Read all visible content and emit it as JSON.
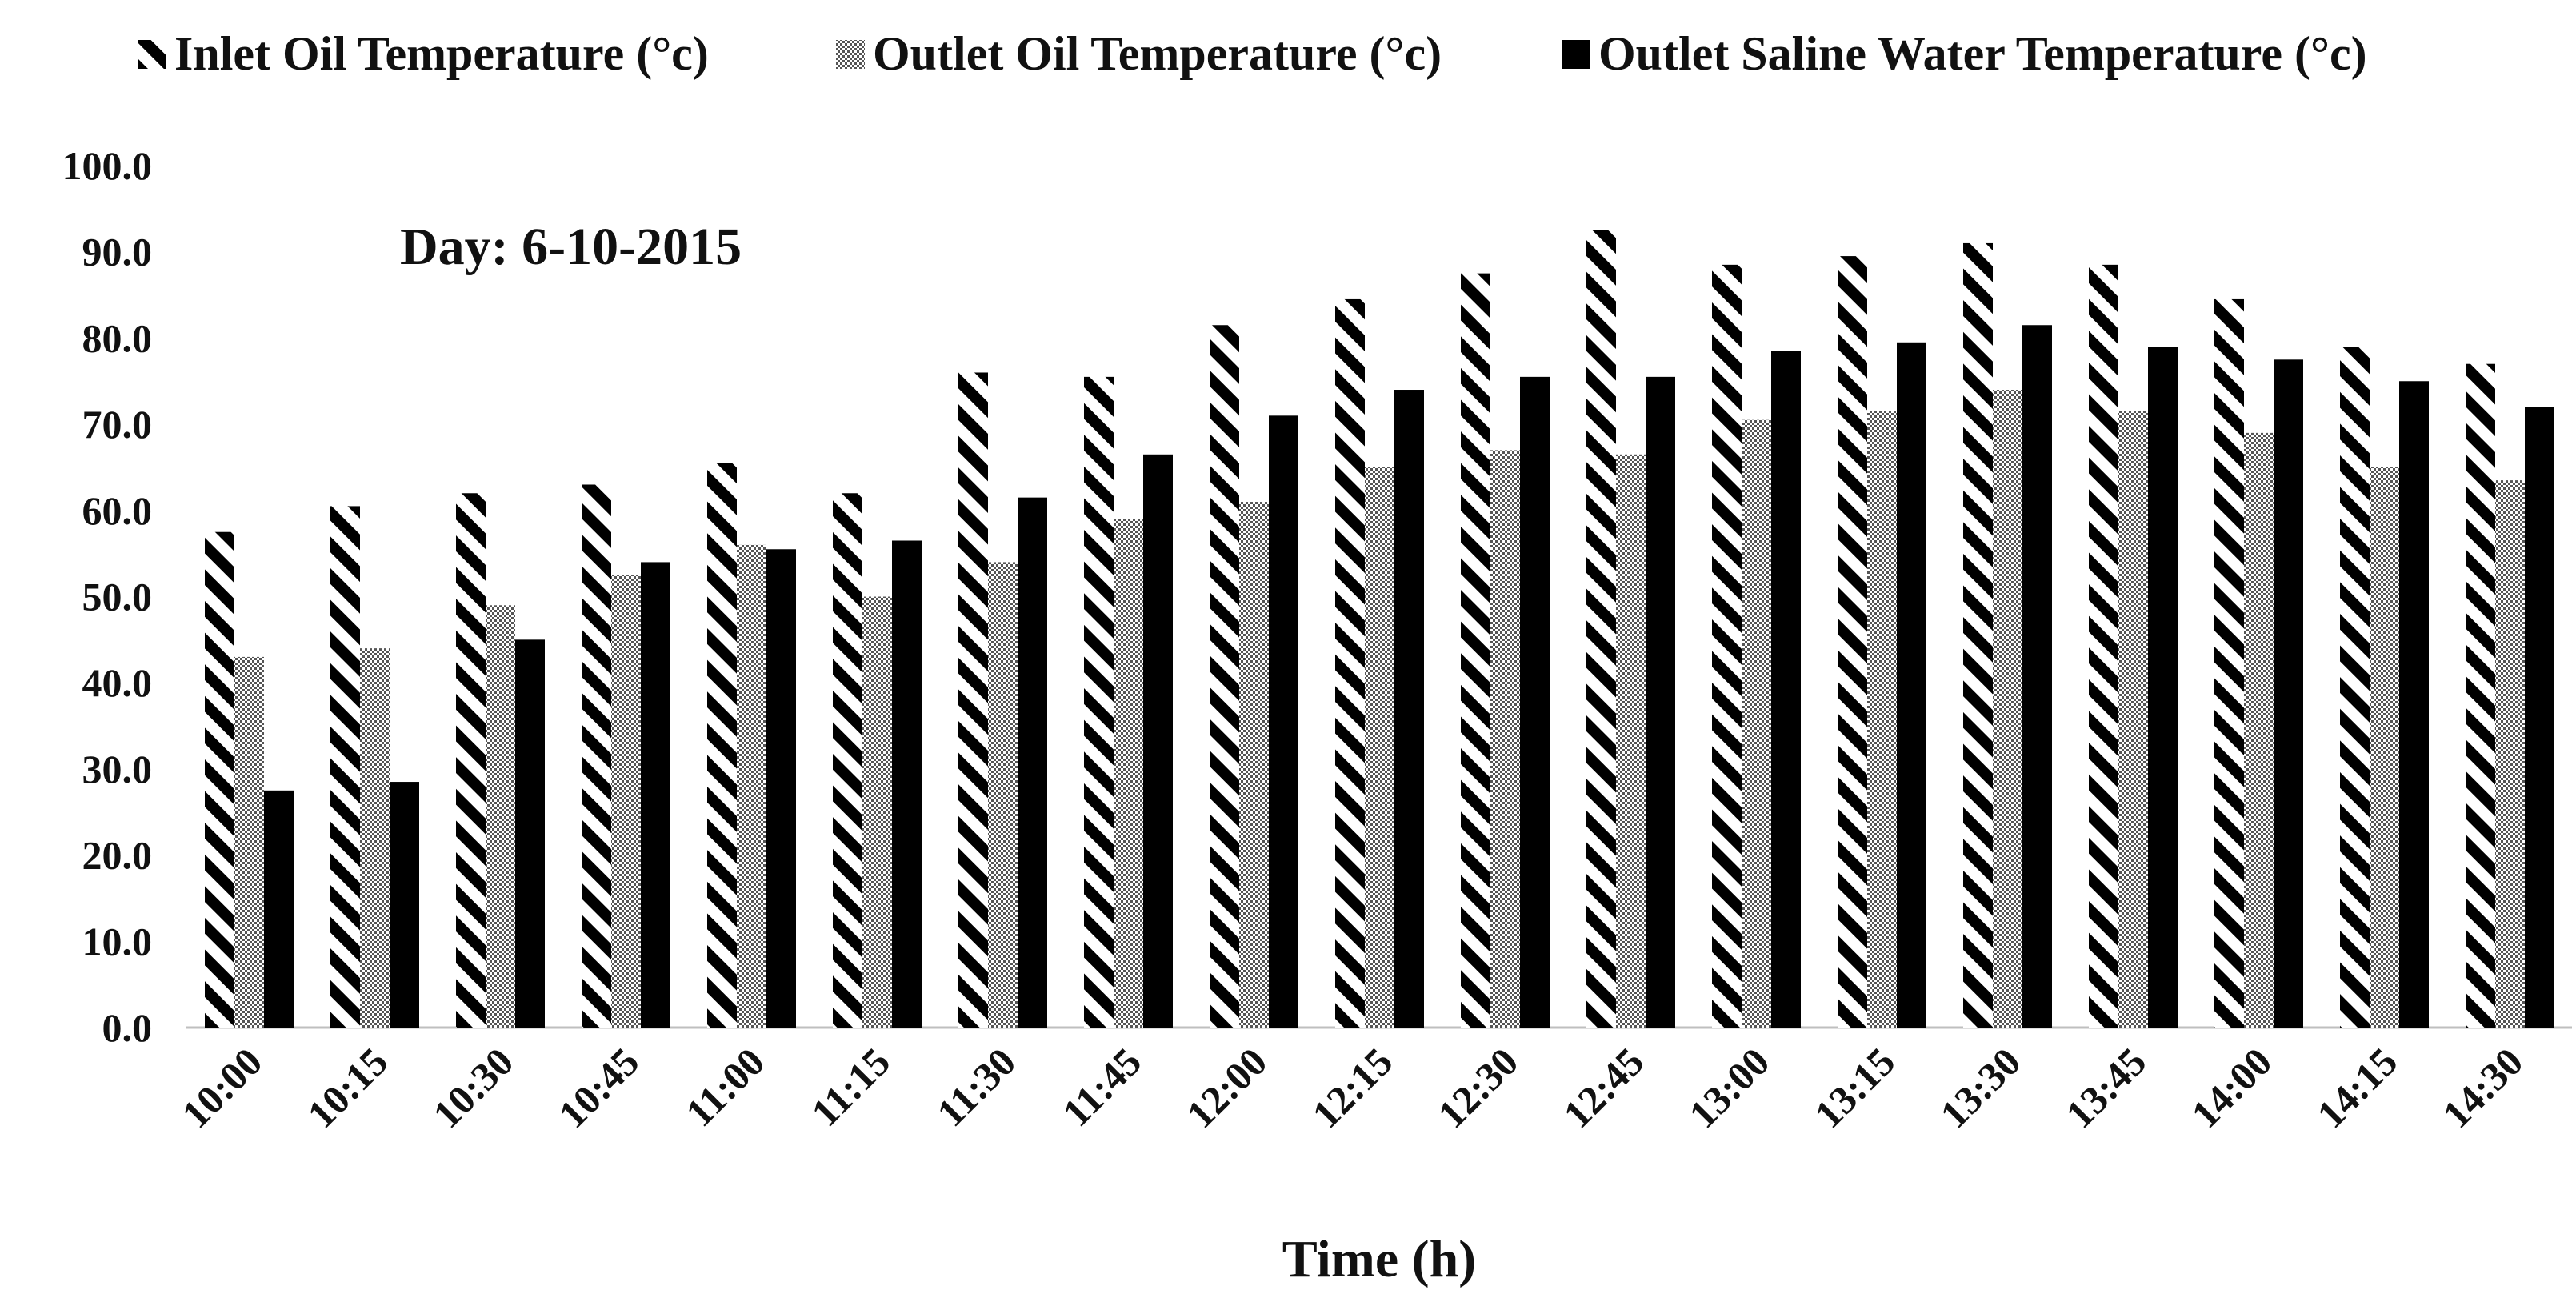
{
  "chart_data": {
    "type": "bar",
    "title": "",
    "annotation": "Day: 6-10-2015",
    "xlabel": "Time (h)",
    "ylabel": "",
    "ylim": [
      0,
      100
    ],
    "yticks": [
      "0.0",
      "10.0",
      "20.0",
      "30.0",
      "40.0",
      "50.0",
      "60.0",
      "70.0",
      "80.0",
      "90.0",
      "100.0"
    ],
    "grid": false,
    "legend_position": "top",
    "categories": [
      "10:00",
      "10:15",
      "10:30",
      "10:45",
      "11:00",
      "11:15",
      "11:30",
      "11:45",
      "12:00",
      "12:15",
      "12:30",
      "12:45",
      "13:00",
      "13:15",
      "13:30",
      "13:45",
      "14:00",
      "14:15",
      "14:30"
    ],
    "series": [
      {
        "name": "Inlet Oil Temperature (°c)",
        "pattern": "diagonal-stripes",
        "color": "#000000",
        "values": [
          57.5,
          60.5,
          62.0,
          63.0,
          65.5,
          62.0,
          76.0,
          75.5,
          81.5,
          84.5,
          87.5,
          92.5,
          88.5,
          89.5,
          91.0,
          88.5,
          84.5,
          79.0,
          77.0
        ]
      },
      {
        "name": "Outlet Oil Temperature (°c)",
        "pattern": "checker",
        "color": "#888888",
        "values": [
          43.0,
          44.0,
          49.0,
          52.5,
          56.0,
          50.0,
          54.0,
          59.0,
          61.0,
          65.0,
          67.0,
          66.5,
          70.5,
          71.5,
          74.0,
          71.5,
          69.0,
          65.0,
          63.5
        ]
      },
      {
        "name": "Outlet Saline Water Temperature (°c)",
        "pattern": "solid",
        "color": "#000000",
        "values": [
          27.5,
          28.5,
          45.0,
          54.0,
          55.5,
          56.5,
          61.5,
          66.5,
          71.0,
          74.0,
          75.5,
          75.5,
          78.5,
          79.5,
          81.5,
          79.0,
          77.5,
          75.0,
          72.0
        ]
      }
    ]
  }
}
